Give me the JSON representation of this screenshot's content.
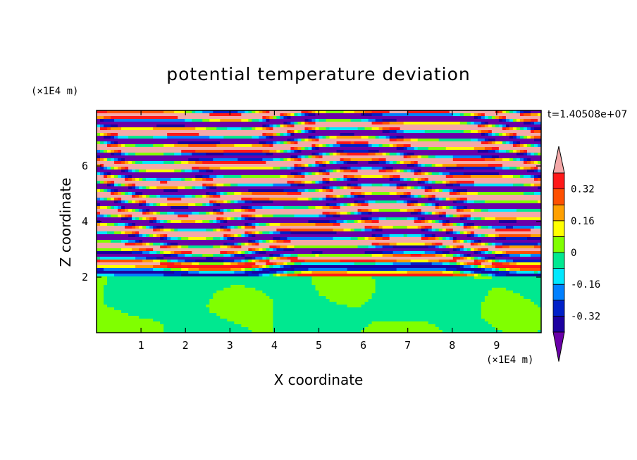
{
  "chart_data": {
    "type": "heatmap",
    "title": "potential temperature deviation",
    "time_label": "t=1.40508e+07",
    "xlabel": "X coordinate",
    "ylabel": "Z coordinate",
    "x_unit": "(×1E4 m)",
    "y_unit": "(×1E4 m)",
    "xlim": [
      0,
      10
    ],
    "ylim": [
      0,
      8
    ],
    "x_ticks": [
      1,
      2,
      3,
      4,
      5,
      6,
      7,
      8,
      9
    ],
    "y_ticks": [
      2,
      4,
      6
    ],
    "colorbar": {
      "levels": [
        -0.4,
        -0.32,
        -0.24,
        -0.16,
        -0.08,
        0,
        0.08,
        0.16,
        0.24,
        0.32,
        0.4
      ],
      "tick_labels": [
        "-0.32",
        "-0.16",
        "0",
        "0.16",
        "0.32"
      ],
      "tick_values": [
        -0.32,
        -0.16,
        0,
        0.16,
        0.32
      ],
      "band_colors": [
        "#1c00a0",
        "#0020c8",
        "#0080ff",
        "#00e8ff",
        "#00e890",
        "#80ff00",
        "#ffff00",
        "#ffa000",
        "#ff5000",
        "#ff1818"
      ],
      "under_color": "#6a00a8",
      "over_color": "#f4a8a8"
    },
    "regions": {
      "lower_layer_z": [
        0,
        2
      ],
      "lower_layer_colors": [
        "#00e890",
        "#80ff00"
      ],
      "upper_layer_z": [
        2,
        8
      ],
      "upper_layer_colors": [
        "#6a00a8",
        "#f4a8a8"
      ]
    }
  }
}
